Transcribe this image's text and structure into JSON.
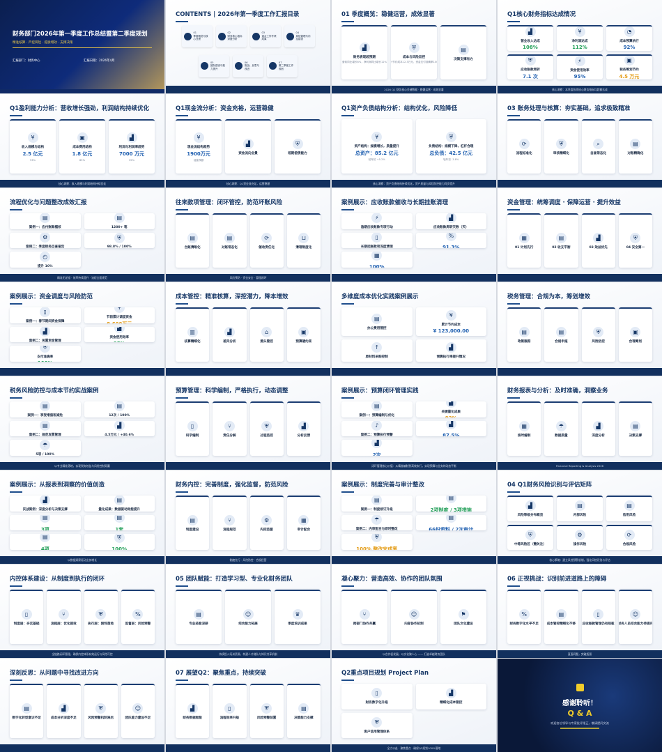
{
  "cover": {
    "title": "财务部门2026年第一季度工作总结暨第二季度规划",
    "subtitle": "精准核算 · 严控风险 · 提质增效 · 支撑决策",
    "department": "汇报部门：财务中心",
    "date": "汇报日期：2026年4月"
  },
  "toc": {
    "title": "CONTENTS | 2026年第一季度工作汇报目录",
    "items": [
      {
        "num": "01",
        "label": "季度概览与核心业绩"
      },
      {
        "num": "02",
        "label": "财务核心指标深度分析"
      },
      {
        "num": "03",
        "label": "重点工作专项成果"
      },
      {
        "num": "04",
        "label": "风险管理与内控建设"
      },
      {
        "num": "05",
        "label": "团队建设与能力提升"
      },
      {
        "num": "06",
        "label": "挑战、反思与改进"
      },
      {
        "num": "07",
        "label": "第二季度工作规划"
      }
    ]
  },
  "slides": [
    {
      "title": "01 季度概览：稳健运营，成效显著",
      "footer": "2026 Q1 财务核心关键数据 · 稳健运营 · 成效显著",
      "cards": [
        {
          "icon": "chart",
          "label": "财务表现超预期",
          "sub": "营收同比增长8%，净利润同比增长12%"
        },
        {
          "icon": "shield",
          "label": "成本与风险双控",
          "sub": "累计节约成本12.3万元，资金支付准确率100%"
        },
        {
          "icon": "doc",
          "label": "决策支撑有力"
        }
      ]
    },
    {
      "title": "Q1核心财务指标达成情况",
      "footer": "核心洞察：本季度各项核心财务指标均超额达成",
      "cards": [
        {
          "icon": "chart",
          "label": "营业收入达成",
          "value": "108%",
          "tone": "g"
        },
        {
          "icon": "coin",
          "label": "净利润达成",
          "value": "112%",
          "tone": "g"
        },
        {
          "icon": "pie",
          "label": "成本预算执行",
          "value": "92%"
        },
        {
          "icon": "shield",
          "label": "应收账款周转",
          "value": "7.1 次"
        },
        {
          "icon": "bolt",
          "label": "资金使用效率",
          "value": "95%"
        },
        {
          "icon": "wallet",
          "label": "税务筹划节约",
          "value": "4.5 万元",
          "tone": "o"
        }
      ]
    },
    {
      "title": "Q1盈利能力分析：营收增长强劲，利润结构持续优化",
      "footer": "核心洞察：收入规模与利润结构持续优化",
      "cards": [
        {
          "icon": "coin",
          "label": "收入规模与结构",
          "value": "2.5 亿元",
          "sub": "93%"
        },
        {
          "icon": "wallet",
          "label": "成本费用结构",
          "value": "1.8 亿元",
          "sub": "85%"
        },
        {
          "icon": "chart",
          "label": "利润与利润率趋势",
          "value": "7000 万元",
          "sub": "35%"
        }
      ]
    },
    {
      "title": "Q1现金流分析：资金充裕，运营稳健",
      "footer": "核心洞察：Q1资金流充足，运营稳健",
      "cards": [
        {
          "icon": "coin",
          "label": "现金流结构趋势",
          "value": "1900万元",
          "sub": "经营净额"
        },
        {
          "icon": "chart",
          "label": "资金流向全景"
        },
        {
          "icon": "shield",
          "label": "短期偿债能力"
        }
      ]
    },
    {
      "title": "Q1资产负债结构分析：结构优化，风险降低",
      "footer": "核心洞察：资产负债结构持续优化，资产质量与风险防控能力同步提升",
      "cards": [
        {
          "icon": "coin",
          "label": "资产结构：规模增长，质量提升",
          "value": "总资产：85.2 亿元",
          "sub": "较年初 +5.2%"
        },
        {
          "icon": "shield",
          "label": "负债结构：规模下降，杠杆合理",
          "value": "总负债：42.5 亿元",
          "sub": "较年初 -3.8%"
        }
      ]
    },
    {
      "title": "03 账务处理与核算：夯实基础，追求极致精准",
      "footer": "",
      "cards": [
        {
          "icon": "cycle",
          "label": "流程标准化"
        },
        {
          "icon": "shield",
          "label": "审核精细化"
        },
        {
          "icon": "search",
          "label": "自查常态化"
        },
        {
          "icon": "doc",
          "label": "对账精确化"
        }
      ]
    },
    {
      "title": "流程优化与问题整改成效汇报",
      "footer": "精准无差错 · 效率持续提升 · 流程全面规范",
      "cards": [
        {
          "icon": "doc",
          "label": "案例一：应付账款稽核"
        },
        {
          "icon": "doc",
          "label": "1200+ 笔"
        },
        {
          "icon": "gear",
          "label": "案例二：季度财务自查报告"
        },
        {
          "icon": "shield",
          "label": "98.8% / 100%"
        },
        {
          "icon": "gauge",
          "label": "提升 10%"
        }
      ]
    },
    {
      "title": "往来款项管理：闭环管控，防范坏账风险",
      "footer": "风险预防 · 资金安全 · 管理闭环",
      "cards": [
        {
          "icon": "doc",
          "label": "台账清晰化"
        },
        {
          "icon": "doc",
          "label": "对账常态化"
        },
        {
          "icon": "cycle",
          "label": "催收责任化"
        },
        {
          "icon": "basket",
          "label": "清理制度化"
        }
      ]
    },
    {
      "title": "案例展示：应收账款催收与长期挂账清理",
      "footer": "",
      "cards": [
        {
          "icon": "bolt",
          "label": "逾期应收账款专项行动"
        },
        {
          "icon": "chart",
          "label": "应收账款周转天数（天）"
        },
        {
          "icon": "phone",
          "label": "长期挂账款项深度清理"
        },
        {
          "icon": "percent",
          "label": "91.3%",
          "value": "91.3%"
        },
        {
          "icon": "calendar",
          "label": "100%",
          "value": "100%"
        }
      ]
    },
    {
      "title": "资金管理：统筹调度 · 保障运营 · 提升效益",
      "footer": "",
      "cards": [
        {
          "icon": "calendar",
          "label": "01 计划先行"
        },
        {
          "icon": "doc",
          "label": "02 收支平衡"
        },
        {
          "icon": "chart",
          "label": "03 效益优先"
        },
        {
          "icon": "shield",
          "label": "04 安全第一"
        }
      ]
    },
    {
      "title": "案例展示：资金调度与风险防范",
      "footer": "",
      "cards": [
        {
          "icon": "phone",
          "label": "案例一：春节期间资金保障"
        },
        {
          "icon": "coin",
          "label": "节前累计调度资金",
          "value": "8,600万元",
          "tone": "o"
        },
        {
          "icon": "chart",
          "label": "案例二：闲置资金管理"
        },
        {
          "icon": "chart",
          "label": "资金使用效率",
          "value": "95%",
          "tone": "g"
        },
        {
          "icon": "shield",
          "label": "支付准确率",
          "value": "100%",
          "tone": "g"
        }
      ]
    },
    {
      "title": "成本管控：精准核算，深挖潜力，降本增效",
      "footer": "",
      "cards": [
        {
          "icon": "calc",
          "label": "核算精细化"
        },
        {
          "icon": "chart",
          "label": "差异分析"
        },
        {
          "icon": "factory",
          "label": "源头管控"
        },
        {
          "icon": "wallet",
          "label": "预算硬约束"
        }
      ]
    },
    {
      "title": "多维度成本优化实践案例展示",
      "footer": "",
      "cards": [
        {
          "icon": "doc",
          "label": "办公费用管控"
        },
        {
          "icon": "coin",
          "label": "累计节约成本",
          "value": "¥ 123,000.00"
        },
        {
          "icon": "arrow",
          "label": "原材料采购控制"
        },
        {
          "icon": "chart",
          "label": "预算执行率提升情况"
        }
      ]
    },
    {
      "title": "税务管理：合规为本，筹划增效",
      "footer": "",
      "cards": [
        {
          "icon": "doc",
          "label": "政策跟踪"
        },
        {
          "icon": "doc",
          "label": "合规申报"
        },
        {
          "icon": "shield",
          "label": "风险防控"
        },
        {
          "icon": "wallet",
          "label": "合理筹划"
        }
      ]
    },
    {
      "title": "税务风险防控与成本节约实战案例",
      "footer": "以专业精准落地，实现税务效益与风险控制双赢",
      "cards": [
        {
          "icon": "doc",
          "label": "案例一：享受增值税减免"
        },
        {
          "icon": "doc",
          "label": "12次 / 100%"
        },
        {
          "icon": "doc",
          "label": "案例二：规范发票管理"
        },
        {
          "icon": "chart",
          "label": "4.5万元 / +40.6%"
        },
        {
          "icon": "umbrella",
          "label": "5项 / 100%"
        }
      ]
    },
    {
      "title": "预算管理：科学编制，严格执行，动态调整",
      "footer": "",
      "cards": [
        {
          "icon": "phone",
          "label": "科学编制"
        },
        {
          "icon": "branch",
          "label": "责任分解"
        },
        {
          "icon": "shield",
          "label": "过程监控"
        },
        {
          "icon": "chart",
          "label": "分析反馈"
        }
      ]
    },
    {
      "title": "案例展示：预算闭环管理实践",
      "footer": "闭环管理核心价值：从精准编制到高效执行，实现预算与业务的动态平衡",
      "cards": [
        {
          "icon": "doc",
          "label": "案例一：预算编制与优化"
        },
        {
          "icon": "chart",
          "label": "关键量化成果",
          "value": "92%",
          "tone": "o"
        },
        {
          "icon": "bell",
          "label": "案例二：预算执行预警"
        },
        {
          "icon": "chart",
          "label": "87.5%",
          "value": "87.5%"
        },
        {
          "icon": "chart",
          "label": "2次",
          "value": "2次"
        }
      ]
    },
    {
      "title": "财务报表与分析：及时准确，洞察业务",
      "footer": "Financial Reporting & Analysis 2026",
      "cards": [
        {
          "icon": "calendar",
          "label": "按时编制"
        },
        {
          "icon": "umbrella",
          "label": "数据质量"
        },
        {
          "icon": "chart",
          "label": "深度分析"
        },
        {
          "icon": "doc",
          "label": "决策支撑"
        }
      ]
    },
    {
      "title": "案例展示：从报表到洞察的价值创造",
      "footer": "以数据洞察驱动业务增长",
      "cards": [
        {
          "icon": "chart",
          "label": "实战案例：深度分析与决策支撑"
        },
        {
          "icon": "doc",
          "label": "量化成果：数据驱动效能提升"
        },
        {
          "icon": "doc",
          "label": "3项",
          "value": "3项",
          "tone": "g"
        },
        {
          "icon": "doc",
          "label": "1套",
          "value": "1套",
          "tone": "g"
        },
        {
          "icon": "doc",
          "label": "4项",
          "value": "4项",
          "tone": "g"
        },
        {
          "icon": "shield",
          "label": "100%",
          "value": "100%",
          "tone": "g"
        }
      ]
    },
    {
      "title": "财务内控：完善制度，强化监督，防范风险",
      "footer": "制度先行 · 风险防控 · 合规经营",
      "cards": [
        {
          "icon": "doc",
          "label": "制度建设"
        },
        {
          "icon": "branch",
          "label": "流程规范"
        },
        {
          "icon": "gear",
          "label": "内控监督"
        },
        {
          "icon": "calendar",
          "label": "审计配合"
        }
      ]
    },
    {
      "title": "案例展示：制度完善与审计整改",
      "footer": "",
      "cards": [
        {
          "icon": "doc",
          "label": "案例一：制度修订升级"
        },
        {
          "icon": "doc",
          "label": "2项制度 / 3项措施",
          "value": "2项制度 / 3项措施",
          "tone": "g"
        },
        {
          "icon": "umbrella",
          "label": "案例二：内审配合与即时整改"
        },
        {
          "icon": "doc",
          "label": "66份资料 / 2次审计",
          "value": "66份资料 / 2次审计"
        },
        {
          "icon": "shield",
          "label": "100% 整改完成率",
          "value": "100% 整改完成率",
          "tone": "o"
        }
      ]
    },
    {
      "title": "04 Q1财务风险识别与评估矩阵",
      "footer": "核心策略：建立风险预警机制，强化风险识别与评估",
      "cards": [
        {
          "icon": "chart",
          "label": "风险等级分布概览"
        },
        {
          "icon": "doc",
          "label": "内部风险"
        },
        {
          "icon": "doc",
          "label": "信用风险"
        },
        {
          "icon": "shield",
          "label": "中等风险区（需关注）"
        },
        {
          "icon": "gear",
          "label": "操作风险"
        },
        {
          "icon": "cycle",
          "label": "合规风险"
        }
      ]
    },
    {
      "title": "内控体系建设：从制度到执行的闭环",
      "footer": "全链路闭环管理，确保内控体系有效运行与风险可控",
      "cards": [
        {
          "icon": "phone",
          "label": "制度层：夯实基础"
        },
        {
          "icon": "branch",
          "label": "流程层：优化提效"
        },
        {
          "icon": "shield",
          "label": "执行层：刚性落地"
        },
        {
          "icon": "percent",
          "label": "监督层：风险预警"
        }
      ]
    },
    {
      "title": "05 团队赋能：打造学习型、专业化财务团队",
      "footer": "持续投入培训资源，构建人才梯队与知识共享机制",
      "cards": [
        {
          "icon": "doc",
          "label": "专业技能深耕"
        },
        {
          "icon": "user",
          "label": "综合能力拓展"
        },
        {
          "icon": "trophy",
          "label": "季度培训成果"
        }
      ]
    },
    {
      "title": "凝心聚力：营造高效、协作的团队氛围",
      "footer": "以合作促发展，以文化聚人心 —— 打造卓越财务团队",
      "cards": [
        {
          "icon": "branch",
          "label": "跨部门协作共赢"
        },
        {
          "icon": "user",
          "label": "内部协作机制"
        },
        {
          "icon": "flag",
          "label": "团队文化建设"
        }
      ]
    },
    {
      "title": "06 正视挑战：识别前进道路上的障碍",
      "footer": "直面问题，突破瓶颈",
      "cards": [
        {
          "icon": "percent",
          "label": "财务数字化水平不足"
        },
        {
          "icon": "doc",
          "label": "成本管控精细化不够"
        },
        {
          "icon": "phone",
          "label": "应收账款管理仍有短板"
        },
        {
          "icon": "user",
          "label": "财务人员综合能力待提升"
        }
      ]
    },
    {
      "title": "深刻反思：从问题中寻找改进方向",
      "footer": "",
      "cards": [
        {
          "icon": "doc",
          "label": "数字化转型意识不足"
        },
        {
          "icon": "chart",
          "label": "成本分析深度不足"
        },
        {
          "icon": "shield",
          "label": "风险预警机制滞后"
        },
        {
          "icon": "user",
          "label": "团队能力建设不足"
        }
      ]
    },
    {
      "title": "07 展望Q2：聚焦重点，持续突破",
      "footer": "",
      "cards": [
        {
          "icon": "chart",
          "label": "财务数据智能"
        },
        {
          "icon": "phone",
          "label": "流程效率升级"
        },
        {
          "icon": "shield",
          "label": "风险预警前置"
        },
        {
          "icon": "doc",
          "label": "决策能力支撑"
        }
      ]
    },
    {
      "title": "Q2重点项目规划 Project Plan",
      "footer": "全力以赴 · 聚焦重点 · 确保Q2规划100%落地",
      "cards": [
        {
          "icon": "phone",
          "label": "财务数字化升级"
        },
        {
          "icon": "chart",
          "label": "精细化成本管控"
        },
        {
          "icon": "shield",
          "label": "客户信用管理体系"
        }
      ]
    }
  ],
  "end": {
    "title": "感谢聆听！",
    "qa": "Q & A",
    "note": "欢迎各位领导与专家批评指正，敬请提问交流"
  },
  "colors": {
    "navy": "#12305e",
    "gold": "#d8b84a",
    "accent": "#1f5fb0",
    "green": "#24a05a",
    "orange": "#e39a12"
  }
}
